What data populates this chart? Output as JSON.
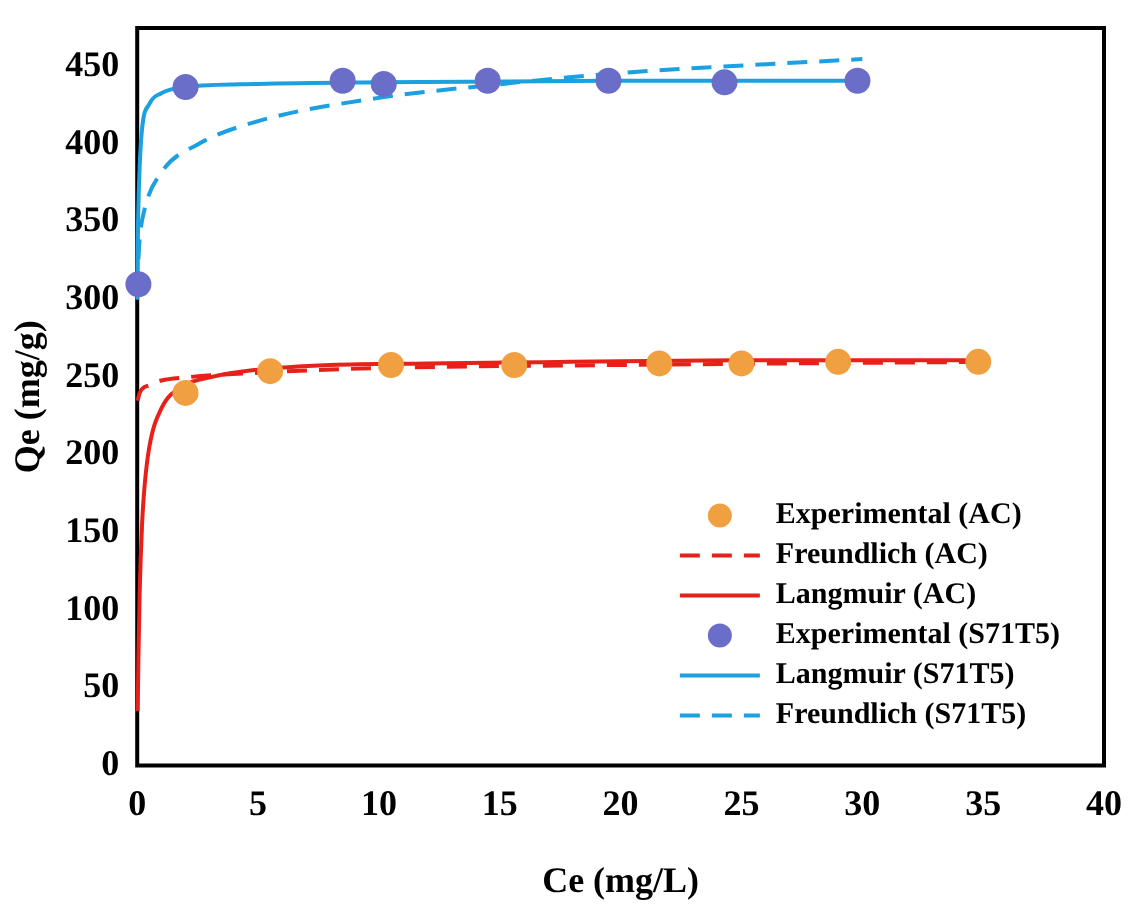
{
  "chart_data": {
    "type": "line",
    "xlabel": "Ce (mg/L)",
    "ylabel": "Qe (mg/g)",
    "xlim": [
      0,
      40
    ],
    "xticks": [
      0,
      5,
      10,
      15,
      20,
      25,
      30,
      35,
      40
    ],
    "ylim": [
      0,
      475
    ],
    "yticks": [
      0,
      50,
      100,
      150,
      200,
      250,
      300,
      350,
      400,
      450
    ],
    "grid": false,
    "legend": "bottom right",
    "series": [
      {
        "name": "Experimental (AC)",
        "type": "scatter",
        "marker": "circle",
        "color": "#f0a040",
        "x": [
          2,
          5.5,
          10.5,
          15.6,
          21.6,
          25,
          29,
          34.8
        ],
        "values": [
          240,
          254,
          258,
          258,
          259,
          259,
          260,
          260
        ]
      },
      {
        "name": "Freundlich (AC)",
        "type": "line",
        "line_style": "dashed",
        "color": "#e8201a",
        "x": [
          0.02,
          0.1,
          0.5,
          1,
          2,
          5,
          10,
          20,
          35
        ],
        "values": [
          235,
          240,
          245,
          248,
          250,
          253,
          256,
          258,
          260
        ]
      },
      {
        "name": "Langmuir (AC)",
        "type": "line",
        "line_style": "solid",
        "color": "#e8201a",
        "x": [
          0.02,
          0.05,
          0.1,
          0.2,
          0.3,
          0.5,
          1,
          2,
          3,
          5,
          8,
          12,
          18,
          25,
          35
        ],
        "values": [
          35,
          69,
          110,
          155,
          179,
          205,
          230,
          245,
          250,
          255,
          258,
          259,
          260,
          261,
          261
        ]
      },
      {
        "name": "Experimental (S71T5)",
        "type": "scatter",
        "marker": "circle",
        "color": "#6a6ec8",
        "x": [
          0.05,
          2,
          8.5,
          10.2,
          14.5,
          19.5,
          24.3,
          29.8
        ],
        "values": [
          310,
          437,
          441,
          439,
          441,
          441,
          440,
          441
        ]
      },
      {
        "name": "Langmuir (S71T5)",
        "type": "line",
        "line_style": "solid",
        "color": "#1ca0e0",
        "x": [
          0.01,
          0.02,
          0.05,
          0.1,
          0.2,
          0.5,
          1,
          2,
          5,
          10,
          20,
          30
        ],
        "values": [
          300,
          330,
          360,
          385,
          410,
          426,
          433,
          437,
          439,
          440,
          441,
          441
        ]
      },
      {
        "name": "Freundlich (S71T5)",
        "type": "line",
        "line_style": "dashed",
        "color": "#1ca0e0",
        "x": [
          0.05,
          0.1,
          0.3,
          1,
          2.5,
          5,
          10,
          14.5,
          20,
          30
        ],
        "values": [
          326,
          339,
          358,
          382,
          400,
          415,
          430,
          438,
          446,
          455
        ]
      }
    ]
  }
}
